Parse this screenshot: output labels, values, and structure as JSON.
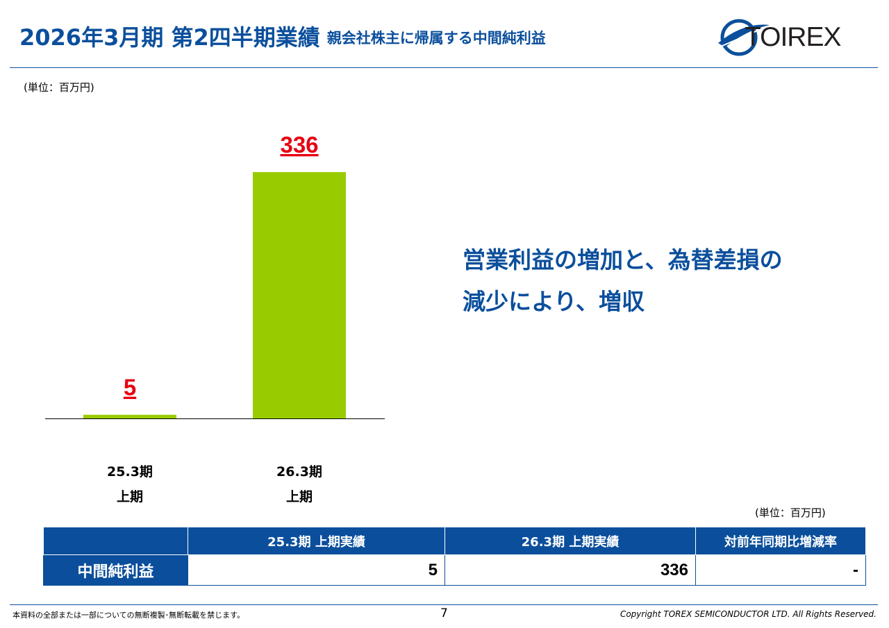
{
  "header": {
    "title": "2026年3月期 第2四半期業績",
    "subtitle": "親会社株主に帰属する中間純利益",
    "logo_text": "TOIREX"
  },
  "unit_label_top": "(単位：百万円)",
  "chart_data": {
    "type": "bar",
    "categories": [
      "25.3期 上期",
      "26.3期 上期"
    ],
    "category_lines": [
      [
        "25.3期",
        "上期"
      ],
      [
        "26.3期",
        "上期"
      ]
    ],
    "values": [
      5,
      336
    ],
    "value_labels": [
      "5",
      "336"
    ],
    "bar_color": "#99cc00",
    "label_color": "#e60012",
    "ylim": [
      0,
      336
    ],
    "title": "",
    "xlabel": "",
    "ylabel": ""
  },
  "message": {
    "line1": "営業利益の増加と、為替差損の",
    "line2": "減少により、増収"
  },
  "table": {
    "unit_label": "(単位：百万円)",
    "headers": [
      "",
      "25.3期 上期実績",
      "26.3期 上期実績",
      "対前年同期比増減率"
    ],
    "row": {
      "label": "中間純利益",
      "values": [
        "5",
        "336",
        "-"
      ]
    }
  },
  "footer": {
    "notice": "本資料の全部または一部についての無断複製･無断転載を禁じます。",
    "page": "7",
    "copyright": "Copyright TOREX SEMICONDUCTOR LTD.  All Rights Reserved."
  },
  "colors": {
    "brand_blue": "#0b4f9c",
    "bar_green": "#99cc00",
    "label_red": "#e60012"
  }
}
